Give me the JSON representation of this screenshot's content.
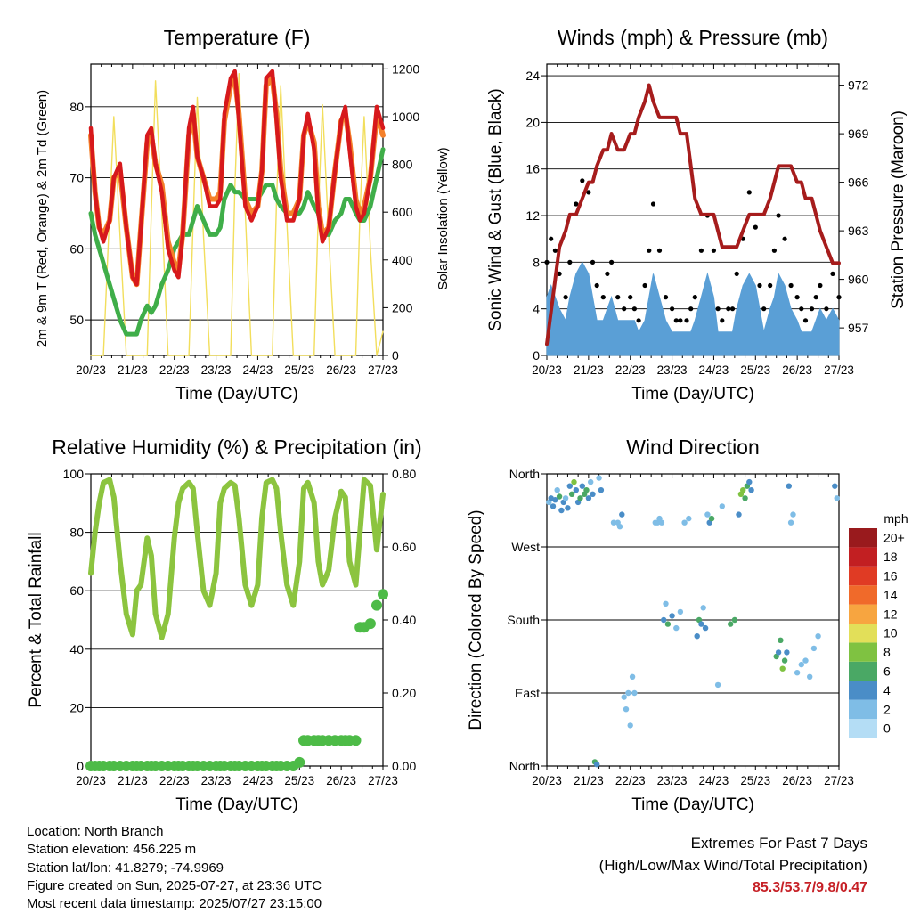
{
  "x_tick_labels": [
    "20/23",
    "21/23",
    "22/23",
    "23/23",
    "24/23",
    "25/23",
    "26/23",
    "27/23"
  ],
  "colors": {
    "temp_2m": "#d7191c",
    "temp_9m": "#f4802a",
    "dewpoint": "#3fae49",
    "solar": "#f2de5c",
    "gust": "#000000",
    "sonic_wind": "#5a9fd6",
    "pressure": "#a61c1c",
    "rh": "#8cc43f",
    "precip": "#4dbb47"
  },
  "chart_data": [
    {
      "type": "line",
      "title": "Temperature (F)",
      "xlabel": "Time (Day/UTC)",
      "ylabel": "2m & 9m T (Red, Orange) & 2m Td (Green)",
      "ylabel_right": "Solar Insolation (Yellow)",
      "ylim": [
        45,
        86
      ],
      "yticks": [
        50,
        60,
        70,
        80
      ],
      "ylim_right": [
        0,
        1220
      ],
      "yticks_right": [
        0,
        200,
        400,
        600,
        800,
        1000,
        1200
      ],
      "grid": true,
      "x": [
        0,
        0.1,
        0.2,
        0.3,
        0.45,
        0.55,
        0.7,
        0.85,
        1,
        1.1,
        1.2,
        1.35,
        1.45,
        1.55,
        1.7,
        1.85,
        2,
        2.1,
        2.2,
        2.35,
        2.45,
        2.55,
        2.7,
        2.85,
        3,
        3.1,
        3.2,
        3.35,
        3.45,
        3.55,
        3.7,
        3.85,
        4,
        4.1,
        4.2,
        4.35,
        4.45,
        4.55,
        4.7,
        4.85,
        5,
        5.1,
        5.2,
        5.35,
        5.45,
        5.55,
        5.7,
        5.85,
        6,
        6.1,
        6.2,
        6.35,
        6.45,
        6.55,
        6.7,
        6.85,
        7
      ],
      "series": [
        {
          "name": "2m T",
          "values": [
            77,
            68,
            63,
            61,
            64,
            70,
            72,
            63,
            56,
            55,
            63,
            76,
            77,
            72,
            68,
            60,
            57,
            56,
            62,
            77,
            80,
            73,
            70,
            66,
            66,
            67,
            79,
            84,
            85,
            78,
            66,
            64,
            66,
            71,
            84,
            85,
            78,
            70,
            64,
            64,
            67,
            76,
            79,
            74,
            65,
            61,
            63,
            71,
            78,
            80,
            74,
            66,
            64,
            65,
            70,
            80,
            77
          ]
        },
        {
          "name": "9m T",
          "values": [
            76,
            68,
            63,
            62,
            64,
            70,
            71,
            63,
            56,
            55,
            63,
            75,
            76,
            72,
            69,
            61,
            58,
            57,
            62,
            76,
            79,
            73,
            70,
            67,
            67,
            68,
            78,
            83,
            84,
            79,
            67,
            65,
            66,
            71,
            83,
            84,
            79,
            71,
            65,
            65,
            67,
            76,
            78,
            75,
            66,
            62,
            63,
            71,
            78,
            79,
            75,
            67,
            65,
            66,
            70,
            79,
            76
          ]
        },
        {
          "name": "2m Td",
          "values": [
            65,
            62,
            60,
            58,
            55,
            53,
            50,
            48,
            48,
            48,
            50,
            52,
            51,
            52,
            55,
            57,
            60,
            61,
            62,
            62,
            64,
            66,
            64,
            62,
            62,
            63,
            67,
            69,
            68,
            68,
            67,
            67,
            67,
            68,
            69,
            69,
            67,
            66,
            65,
            65,
            65,
            66,
            68,
            66,
            65,
            62,
            62,
            64,
            65,
            67,
            67,
            65,
            64,
            64,
            66,
            70,
            74
          ]
        },
        {
          "name": "Solar Insolation",
          "axis": "right",
          "values": [
            0,
            0,
            0,
            0,
            600,
            1000,
            500,
            0,
            0,
            0,
            0,
            0,
            600,
            1150,
            600,
            0,
            0,
            0,
            0,
            0,
            550,
            1080,
            500,
            0,
            0,
            0,
            0,
            0,
            700,
            1180,
            600,
            0,
            0,
            0,
            0,
            0,
            650,
            1130,
            550,
            0,
            0,
            0,
            0,
            0,
            600,
            1050,
            500,
            0,
            0,
            0,
            0,
            0,
            600,
            1000,
            450,
            0,
            100
          ]
        }
      ]
    },
    {
      "type": "scatter",
      "title": "Winds (mph) & Pressure (mb)",
      "xlabel": "Time (Day/UTC)",
      "ylabel": "Sonic Wind & Gust (Blue, Black)",
      "ylabel_right": "Station Pressure (Maroon)",
      "ylim": [
        0,
        25
      ],
      "yticks": [
        0,
        4,
        8,
        12,
        16,
        20,
        24
      ],
      "ylim_right": [
        955.3,
        973.3
      ],
      "yticks_right": [
        957,
        960,
        963,
        966,
        969,
        972
      ],
      "grid": true,
      "x": [
        0,
        0.1,
        0.2,
        0.3,
        0.45,
        0.55,
        0.7,
        0.85,
        1,
        1.1,
        1.2,
        1.35,
        1.45,
        1.55,
        1.7,
        1.85,
        2,
        2.1,
        2.2,
        2.35,
        2.45,
        2.55,
        2.7,
        2.85,
        3,
        3.1,
        3.2,
        3.35,
        3.45,
        3.55,
        3.7,
        3.85,
        4,
        4.1,
        4.2,
        4.35,
        4.45,
        4.55,
        4.7,
        4.85,
        5,
        5.1,
        5.2,
        5.35,
        5.45,
        5.55,
        5.7,
        5.85,
        6,
        6.1,
        6.2,
        6.35,
        6.45,
        6.55,
        6.7,
        6.85,
        7
      ],
      "series": [
        {
          "name": "Gust",
          "values": [
            8,
            10,
            9,
            7,
            5,
            8,
            13,
            15,
            14,
            8,
            6,
            5,
            7,
            8,
            5,
            4,
            5,
            4,
            3,
            6,
            9,
            13,
            9,
            5,
            4,
            3,
            3,
            3,
            4,
            5,
            9,
            12,
            9,
            4,
            3,
            4,
            4,
            7,
            10,
            14,
            11,
            6,
            4,
            6,
            9,
            12,
            10,
            6,
            5,
            4,
            3,
            4,
            5,
            6,
            4,
            7,
            5
          ]
        },
        {
          "name": "Sonic Wind",
          "values": [
            5,
            6,
            5,
            4,
            3,
            5,
            7,
            8,
            7,
            5,
            3,
            3,
            4,
            5,
            3,
            3,
            3,
            3,
            2,
            3,
            5,
            7,
            5,
            3,
            2,
            2,
            2,
            2,
            2,
            3,
            5,
            7,
            5,
            2,
            2,
            2,
            2,
            4,
            6,
            7,
            6,
            4,
            2,
            4,
            5,
            7,
            6,
            4,
            3,
            2,
            2,
            2,
            3,
            4,
            3,
            4,
            3
          ]
        },
        {
          "name": "Station Pressure",
          "axis": "right",
          "values": [
            956,
            958,
            960,
            962,
            963,
            964,
            964,
            965,
            966,
            966,
            967,
            968,
            968,
            969,
            968,
            968,
            969,
            969,
            970,
            971,
            972,
            971,
            970,
            970,
            970,
            970,
            969,
            969,
            967,
            965,
            964,
            964,
            964,
            963,
            962,
            962,
            962,
            962,
            963,
            964,
            964,
            964,
            964,
            965,
            966,
            967,
            967,
            967,
            966,
            966,
            965,
            965,
            964,
            963,
            962,
            961,
            961
          ]
        }
      ]
    },
    {
      "type": "scatter",
      "title": "Relative Humidity (%) & Precipitation (in)",
      "xlabel": "Time (Day/UTC)",
      "ylabel": "Percent & Total Rainfall",
      "ylim": [
        0,
        100
      ],
      "yticks": [
        0,
        20,
        40,
        60,
        80,
        100
      ],
      "ylim_right": [
        0,
        0.8
      ],
      "yticks_right": [
        "0.00",
        "0.20",
        "0.40",
        "0.60",
        "0.80"
      ],
      "grid": true,
      "x": [
        0,
        0.1,
        0.2,
        0.3,
        0.45,
        0.55,
        0.7,
        0.85,
        1,
        1.1,
        1.2,
        1.35,
        1.45,
        1.55,
        1.7,
        1.85,
        2,
        2.1,
        2.2,
        2.35,
        2.45,
        2.55,
        2.7,
        2.85,
        3,
        3.1,
        3.2,
        3.35,
        3.45,
        3.55,
        3.7,
        3.85,
        4,
        4.1,
        4.2,
        4.35,
        4.45,
        4.55,
        4.7,
        4.85,
        5,
        5.1,
        5.2,
        5.35,
        5.45,
        5.55,
        5.7,
        5.85,
        6,
        6.1,
        6.2,
        6.35,
        6.45,
        6.55,
        6.7,
        6.85,
        7
      ],
      "series": [
        {
          "name": "Relative Humidity",
          "values": [
            66,
            80,
            90,
            97,
            98,
            92,
            70,
            52,
            45,
            60,
            62,
            78,
            72,
            52,
            44,
            52,
            78,
            90,
            95,
            97,
            95,
            80,
            60,
            55,
            66,
            90,
            95,
            97,
            96,
            85,
            62,
            55,
            62,
            85,
            97,
            98,
            95,
            80,
            62,
            55,
            70,
            95,
            97,
            90,
            70,
            62,
            67,
            85,
            94,
            92,
            70,
            62,
            80,
            98,
            96,
            74,
            93
          ]
        },
        {
          "name": "Total Precipitation",
          "axis": "right",
          "values": [
            0,
            0,
            0,
            0,
            0,
            0,
            0,
            0,
            0,
            0,
            0,
            0,
            0,
            0,
            0,
            0,
            0,
            0,
            0,
            0,
            0,
            0,
            0,
            0,
            0,
            0,
            0,
            0,
            0,
            0,
            0,
            0,
            0,
            0,
            0,
            0,
            0,
            0,
            0,
            0,
            0.01,
            0.07,
            0.07,
            0.07,
            0.07,
            0.07,
            0.07,
            0.07,
            0.07,
            0.07,
            0.07,
            0.07,
            0.38,
            0.38,
            0.39,
            0.44,
            0.47
          ]
        }
      ]
    },
    {
      "type": "scatter",
      "title": "Wind Direction",
      "xlabel": "Time (Day/UTC)",
      "ylabel": "Direction (Colored By Speed)",
      "yticks": [
        "North",
        "East",
        "South",
        "West",
        "North"
      ],
      "ylim": [
        0,
        360
      ],
      "grid": true,
      "colorbar_label": "mph",
      "colorbar_levels": [
        "0",
        "2",
        "4",
        "6",
        "8",
        "10",
        "12",
        "14",
        "16",
        "18",
        "20+"
      ],
      "colorbar_colors": [
        "#b4ddf5",
        "#7fbde6",
        "#4a8dc7",
        "#4aa865",
        "#7fc241",
        "#e2df59",
        "#f7a540",
        "#f06a2a",
        "#e03b24",
        "#c21f22",
        "#991a1d"
      ],
      "x": [
        0.05,
        0.1,
        0.15,
        0.2,
        0.25,
        0.3,
        0.35,
        0.4,
        0.45,
        0.5,
        0.55,
        0.6,
        0.65,
        0.7,
        0.75,
        0.8,
        0.85,
        0.9,
        0.95,
        1.0,
        1.05,
        1.1,
        1.15,
        1.2,
        1.25,
        1.3,
        1.6,
        1.7,
        1.75,
        1.8,
        1.85,
        1.9,
        1.95,
        2.0,
        2.05,
        2.1,
        2.6,
        2.65,
        2.7,
        2.75,
        2.8,
        2.85,
        2.9,
        3.0,
        3.1,
        3.2,
        3.3,
        3.4,
        3.6,
        3.65,
        3.7,
        3.75,
        3.8,
        3.85,
        3.9,
        3.95,
        4.1,
        4.2,
        4.4,
        4.5,
        4.6,
        4.65,
        4.7,
        4.75,
        4.8,
        4.85,
        4.9,
        5.5,
        5.55,
        5.6,
        5.65,
        5.7,
        5.75,
        5.8,
        5.85,
        5.9,
        6.0,
        6.1,
        6.2,
        6.3,
        6.4,
        6.5,
        6.9,
        6.95
      ],
      "values": [
        325,
        330,
        320,
        328,
        340,
        332,
        315,
        325,
        330,
        318,
        345,
        335,
        350,
        340,
        325,
        330,
        345,
        335,
        340,
        330,
        350,
        335,
        5,
        2,
        355,
        340,
        300,
        300,
        295,
        310,
        85,
        70,
        90,
        50,
        110,
        90,
        300,
        300,
        305,
        300,
        180,
        200,
        175,
        185,
        170,
        190,
        300,
        305,
        160,
        180,
        175,
        195,
        170,
        310,
        300,
        305,
        100,
        320,
        175,
        180,
        310,
        335,
        340,
        330,
        345,
        350,
        340,
        135,
        140,
        155,
        120,
        130,
        140,
        345,
        300,
        310,
        115,
        125,
        130,
        110,
        145,
        160,
        345,
        330
      ],
      "speed": [
        3,
        4,
        5,
        4,
        3,
        6,
        5,
        4,
        3,
        5,
        4,
        7,
        8,
        5,
        4,
        6,
        5,
        7,
        6,
        4,
        3,
        5,
        6,
        4,
        3,
        5,
        3,
        2,
        3,
        4,
        3,
        2,
        3,
        2,
        2,
        3,
        2,
        3,
        2,
        2,
        4,
        3,
        6,
        5,
        3,
        2,
        2,
        2,
        5,
        6,
        4,
        3,
        5,
        3,
        4,
        6,
        2,
        3,
        7,
        6,
        5,
        9,
        8,
        7,
        6,
        5,
        4,
        6,
        5,
        7,
        8,
        6,
        5,
        4,
        3,
        3,
        2,
        3,
        2,
        3,
        2,
        2,
        4,
        3
      ]
    }
  ],
  "footer": {
    "location": "Location: North Branch",
    "elevation": "Station elevation: 456.225 m",
    "latlon": "Station lat/lon: 41.8279; -74.9969",
    "created": "Figure created on Sun, 2025-07-27, at 23:36 UTC",
    "recent": "Most recent data timestamp: 2025/07/27 23:15:00"
  },
  "extremes": {
    "heading": "Extremes For Past 7 Days",
    "subheading": "(High/Low/Max Wind/Total Precipitation)",
    "values": "85.3/53.7/9.8/0.47"
  }
}
